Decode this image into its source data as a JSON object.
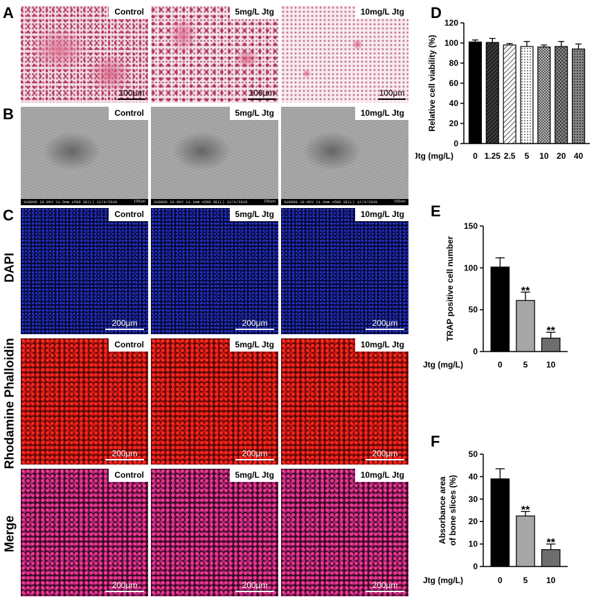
{
  "panel_letters": {
    "a": "A",
    "b": "B",
    "c": "C",
    "d": "D",
    "e": "E",
    "f": "F"
  },
  "conditions": [
    "Control",
    "5mg/L Jtg",
    "10mg/L Jtg"
  ],
  "scale_bar_a": "100μm",
  "scale_bar_c": "200μm",
  "sem_info": [
    "SU8000 10.0kV 11.5mm x500 SE(L) 12/4/2020",
    "SU8000 10.0kV 11.1mm x500 SE(L) 12/4/2020",
    "SU8000 10.0kV 11.2mm x500 SE(L) 12/4/2020"
  ],
  "sem_scale": "100um",
  "row_labels": {
    "dapi": "DAPI",
    "rhodamine": "Rhodamine Phalloidin",
    "merge": "Merge"
  },
  "colors": {
    "bar_black": "#000000",
    "bar_gray": "#a6a6a8",
    "bar_darkgray": "#6e6e6e",
    "dapi": "#1a2bd6",
    "rhodamine": "#e81d1d",
    "merge": "#e0357f"
  },
  "chart_data": [
    {
      "panel": "D",
      "type": "bar",
      "xlabel": "Jtg (mg/L)",
      "ylabel": "Relative cell viability (%)",
      "categories": [
        "0",
        "1.25",
        "2.5",
        "5",
        "10",
        "20",
        "40"
      ],
      "values": [
        101,
        100.5,
        98,
        96.5,
        96,
        96.5,
        94
      ],
      "errors": [
        2,
        4,
        1.5,
        5,
        2,
        5,
        5
      ],
      "ylim": [
        0,
        120
      ],
      "yticks": [
        "0",
        "20",
        "40",
        "60",
        "80",
        "100",
        "120"
      ],
      "annotations": []
    },
    {
      "panel": "E",
      "type": "bar",
      "xlabel": "Jtg (mg/L)",
      "ylabel": "TRAP positive cell number",
      "categories": [
        "0",
        "5",
        "10"
      ],
      "values": [
        101,
        61,
        16
      ],
      "errors": [
        11,
        10,
        7
      ],
      "ylim": [
        0,
        150
      ],
      "yticks": [
        "0",
        "50",
        "100",
        "150"
      ],
      "annotations": [
        "",
        "**",
        "**"
      ]
    },
    {
      "panel": "F",
      "type": "bar",
      "xlabel": "Jtg (mg/L)",
      "ylabel": [
        "Absorbance area",
        "of bone slices (%)"
      ],
      "categories": [
        "0",
        "5",
        "10"
      ],
      "values": [
        39,
        22.5,
        7.5
      ],
      "errors": [
        4.5,
        2,
        2.5
      ],
      "ylim": [
        0,
        50
      ],
      "yticks": [
        "0",
        "10",
        "20",
        "30",
        "40",
        "50"
      ],
      "annotations": [
        "",
        "**",
        "**"
      ]
    }
  ]
}
